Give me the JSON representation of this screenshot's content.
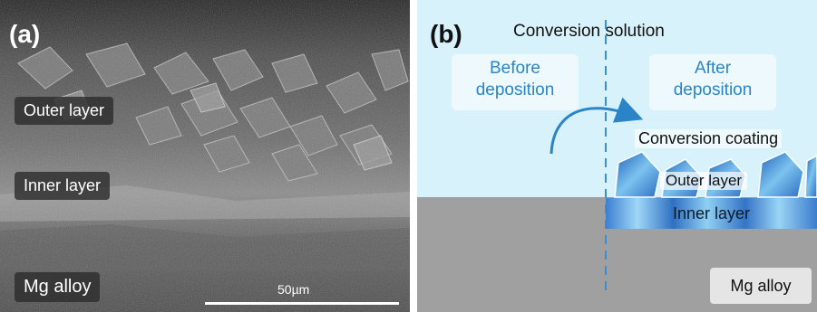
{
  "panel_a": {
    "letter": "(a)",
    "outer_layer": "Outer layer",
    "inner_layer": "Inner layer",
    "substrate": "Mg alloy",
    "scale_bar": "50µm"
  },
  "panel_b": {
    "letter": "(b)",
    "solution": "Conversion solution",
    "before_line1": "Before",
    "before_line2": "deposition",
    "after_line1": "After",
    "after_line2": "deposition",
    "coating": "Conversion coating",
    "outer_layer": "Outer layer",
    "inner_layer": "Inner layer",
    "substrate": "Mg alloy"
  },
  "colors": {
    "solution_bg": "#d8f2fb",
    "substrate": "#a0a0a0",
    "accent_blue": "#2a84c7",
    "crystal_blue": "#3a78c9"
  }
}
